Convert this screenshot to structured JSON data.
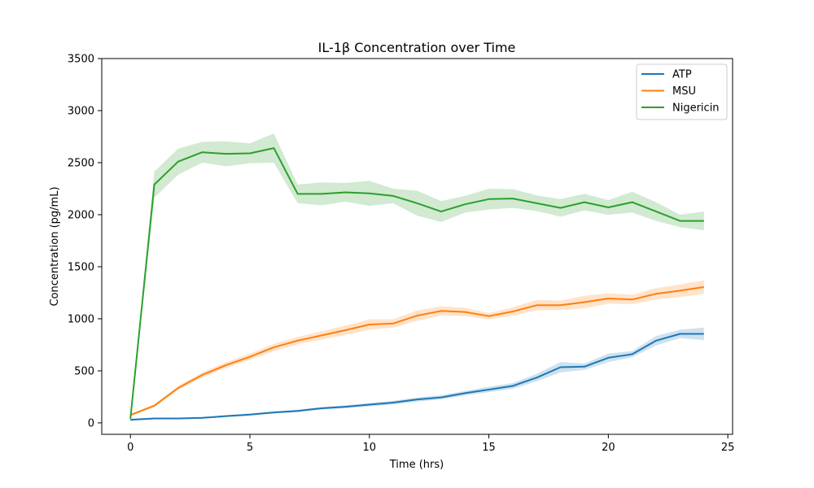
{
  "chart_data": {
    "type": "line",
    "title": "IL-1β Concentration over Time",
    "xlabel": "Time (hrs)",
    "ylabel": "Concentration (pg/mL)",
    "xlim": [
      -1.2,
      25.2
    ],
    "ylim": [
      -110,
      3500
    ],
    "xticks": [
      0,
      5,
      10,
      15,
      20,
      25
    ],
    "yticks": [
      0,
      500,
      1000,
      1500,
      2000,
      2500,
      3000,
      3500
    ],
    "grid": false,
    "legend_position": "top-right",
    "x": [
      0,
      1,
      2,
      3,
      4,
      5,
      6,
      7,
      8,
      9,
      10,
      11,
      12,
      13,
      14,
      15,
      16,
      17,
      18,
      19,
      20,
      21,
      22,
      23,
      24
    ],
    "series": [
      {
        "name": "ATP",
        "color": "#1f77b4",
        "values": [
          30,
          42,
          42,
          48,
          65,
          80,
          100,
          115,
          140,
          155,
          175,
          195,
          225,
          245,
          285,
          320,
          355,
          435,
          535,
          540,
          625,
          660,
          790,
          855,
          855
        ],
        "band": [
          10,
          8,
          8,
          8,
          10,
          10,
          10,
          12,
          12,
          14,
          16,
          18,
          20,
          20,
          22,
          26,
          28,
          35,
          50,
          30,
          40,
          30,
          45,
          40,
          60
        ]
      },
      {
        "name": "MSU",
        "color": "#ff7f0e",
        "values": [
          75,
          165,
          335,
          460,
          555,
          635,
          725,
          790,
          840,
          890,
          945,
          955,
          1030,
          1075,
          1065,
          1025,
          1070,
          1130,
          1130,
          1160,
          1195,
          1185,
          1240,
          1270,
          1305
        ],
        "band": [
          10,
          14,
          20,
          25,
          28,
          30,
          35,
          35,
          40,
          45,
          50,
          40,
          50,
          45,
          40,
          30,
          40,
          50,
          45,
          60,
          50,
          45,
          55,
          60,
          65
        ]
      },
      {
        "name": "Nigericin",
        "color": "#2ca02c",
        "values": [
          40,
          2290,
          2510,
          2600,
          2585,
          2590,
          2640,
          2200,
          2200,
          2215,
          2205,
          2180,
          2110,
          2030,
          2100,
          2150,
          2155,
          2110,
          2065,
          2120,
          2070,
          2120,
          2030,
          1940,
          1940
        ],
        "band": [
          10,
          125,
          125,
          100,
          120,
          95,
          140,
          90,
          110,
          90,
          120,
          70,
          120,
          100,
          80,
          100,
          90,
          75,
          85,
          80,
          70,
          100,
          90,
          60,
          90
        ]
      }
    ]
  }
}
